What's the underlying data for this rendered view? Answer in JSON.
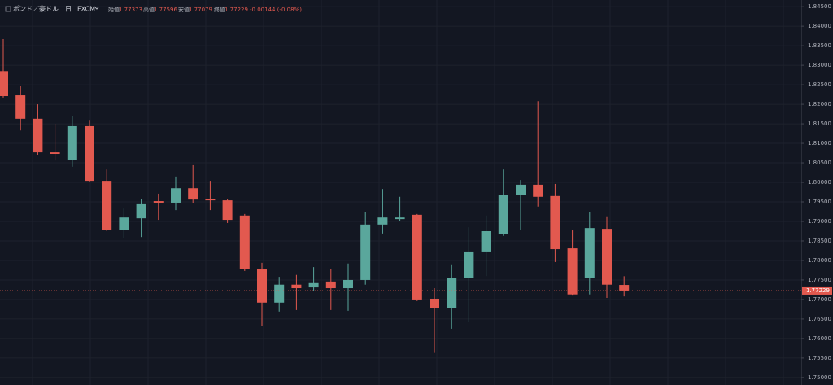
{
  "header": {
    "symbol": "ポンド／豪ドル",
    "interval": "日",
    "source": "FXCM",
    "open_label": "始値",
    "high_label": "高値",
    "low_label": "安値",
    "close_label": "終値",
    "change": "-0.00144 (-0.08%)"
  },
  "chart_data": {
    "type": "candlestick",
    "up_color": "#5aa79c",
    "down_color": "#e2594f",
    "open": [
      1.8285,
      1.8223,
      1.8163,
      1.8077,
      1.8058,
      1.8144,
      1.8004,
      1.7879,
      1.7908,
      1.7952,
      1.7948,
      1.7985,
      1.7958,
      1.7954,
      1.7915,
      1.7777,
      1.7692,
      1.7738,
      1.7731,
      1.7746,
      1.7729,
      1.775,
      1.7892,
      1.7906,
      1.7917,
      1.7702,
      1.7677,
      1.7756,
      1.7823,
      1.7867,
      1.7967,
      1.7994,
      1.7965,
      1.7831,
      1.7756,
      1.7881,
      1.77373
    ],
    "high": [
      1.8367,
      1.8246,
      1.82,
      1.815,
      1.8171,
      1.8158,
      1.8033,
      1.7933,
      1.7958,
      1.7971,
      1.8015,
      1.8044,
      1.8004,
      1.7958,
      1.7919,
      1.7794,
      1.7758,
      1.7763,
      1.7783,
      1.7779,
      1.7792,
      1.7925,
      1.7983,
      1.7963,
      1.7919,
      1.7729,
      1.779,
      1.7885,
      1.7915,
      1.8033,
      1.8006,
      1.8208,
      1.7996,
      1.7877,
      1.7925,
      1.7913,
      1.77596
    ],
    "low": [
      1.8217,
      1.8133,
      1.8071,
      1.8056,
      1.804,
      1.8,
      1.7875,
      1.7858,
      1.786,
      1.7904,
      1.7929,
      1.7946,
      1.7929,
      1.7896,
      1.7773,
      1.7631,
      1.7669,
      1.7673,
      1.7721,
      1.7673,
      1.7671,
      1.7738,
      1.7869,
      1.79,
      1.7696,
      1.7563,
      1.7625,
      1.7642,
      1.776,
      1.7863,
      1.7879,
      1.7938,
      1.7796,
      1.771,
      1.7713,
      1.7704,
      1.77079
    ],
    "close": [
      1.8221,
      1.8163,
      1.8077,
      1.8073,
      1.8144,
      1.8004,
      1.7879,
      1.791,
      1.7944,
      1.7948,
      1.7985,
      1.7956,
      1.7954,
      1.7904,
      1.7777,
      1.7692,
      1.7738,
      1.7729,
      1.7742,
      1.7729,
      1.775,
      1.7892,
      1.791,
      1.791,
      1.77,
      1.7677,
      1.7756,
      1.7823,
      1.7875,
      1.7967,
      1.7994,
      1.7963,
      1.7829,
      1.7713,
      1.7883,
      1.7738,
      1.77229
    ],
    "ylim": [
      1.7481,
      1.8467
    ],
    "yticks": [
      {
        "value": 1.845,
        "label": "1.84500"
      },
      {
        "value": 1.84,
        "label": "1.84000"
      },
      {
        "value": 1.835,
        "label": "1.83500"
      },
      {
        "value": 1.83,
        "label": "1.83000"
      },
      {
        "value": 1.825,
        "label": "1.82500"
      },
      {
        "value": 1.82,
        "label": "1.82000"
      },
      {
        "value": 1.815,
        "label": "1.81500"
      },
      {
        "value": 1.81,
        "label": "1.81000"
      },
      {
        "value": 1.805,
        "label": "1.80500"
      },
      {
        "value": 1.8,
        "label": "1.80000"
      },
      {
        "value": 1.795,
        "label": "1.79500"
      },
      {
        "value": 1.79,
        "label": "1.79000"
      },
      {
        "value": 1.785,
        "label": "1.78500"
      },
      {
        "value": 1.78,
        "label": "1.78000"
      },
      {
        "value": 1.775,
        "label": "1.77500"
      },
      {
        "value": 1.77,
        "label": "1.77000"
      },
      {
        "value": 1.765,
        "label": "1.76500"
      },
      {
        "value": 1.76,
        "label": "1.76000"
      },
      {
        "value": 1.755,
        "label": "1.75500"
      },
      {
        "value": 1.75,
        "label": "1.75000"
      }
    ],
    "grid": true
  }
}
